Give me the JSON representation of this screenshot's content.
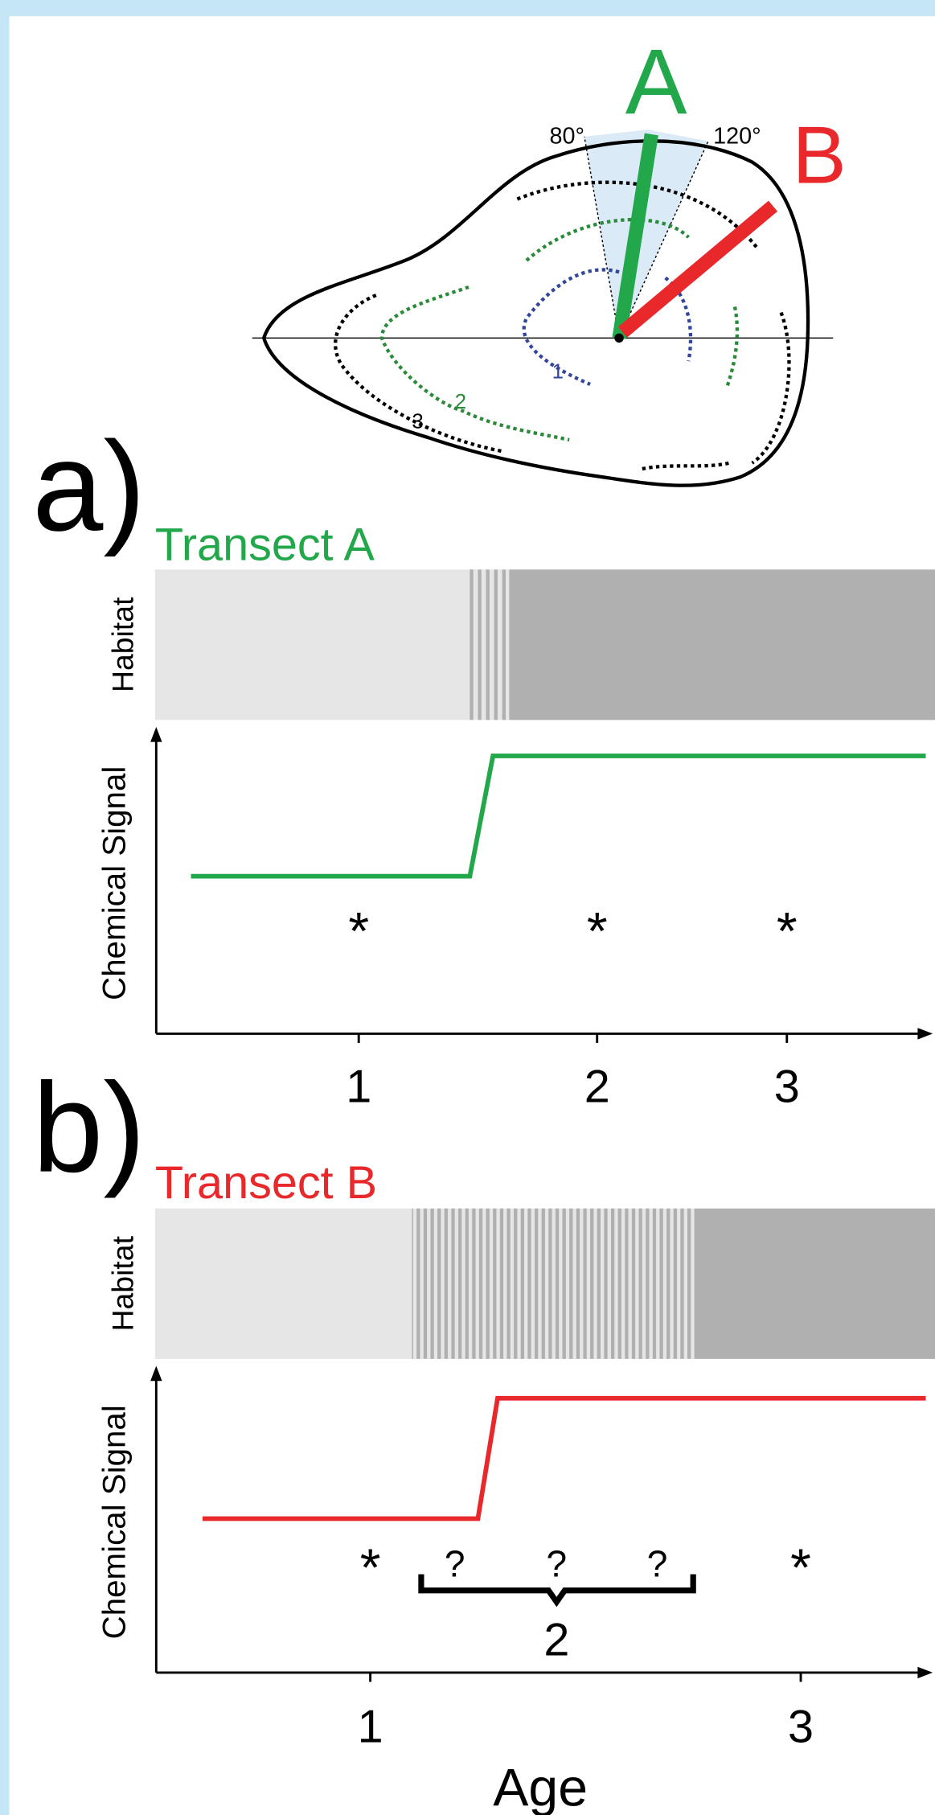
{
  "shell": {
    "transect_a": "A",
    "transect_b": "B",
    "angle_left": "80°",
    "angle_right": "120°",
    "ring_labels": [
      "1",
      "2",
      "3"
    ]
  },
  "panels": [
    {
      "label": "a)",
      "title": "Transect A",
      "habitat_label": "Habitat",
      "y_label": "Chemical Signal",
      "markers": [
        "*",
        "*",
        "*"
      ],
      "x_ticks": [
        "1",
        "2",
        "3"
      ]
    },
    {
      "label": "b)",
      "title": "Transect B",
      "habitat_label": "Habitat",
      "y_label": "Chemical Signal",
      "markers": [
        "*",
        "?",
        "?",
        "?",
        "*"
      ],
      "brace_label": "2",
      "x_ticks": [
        "1",
        "3"
      ],
      "x_label": "Age"
    }
  ]
}
